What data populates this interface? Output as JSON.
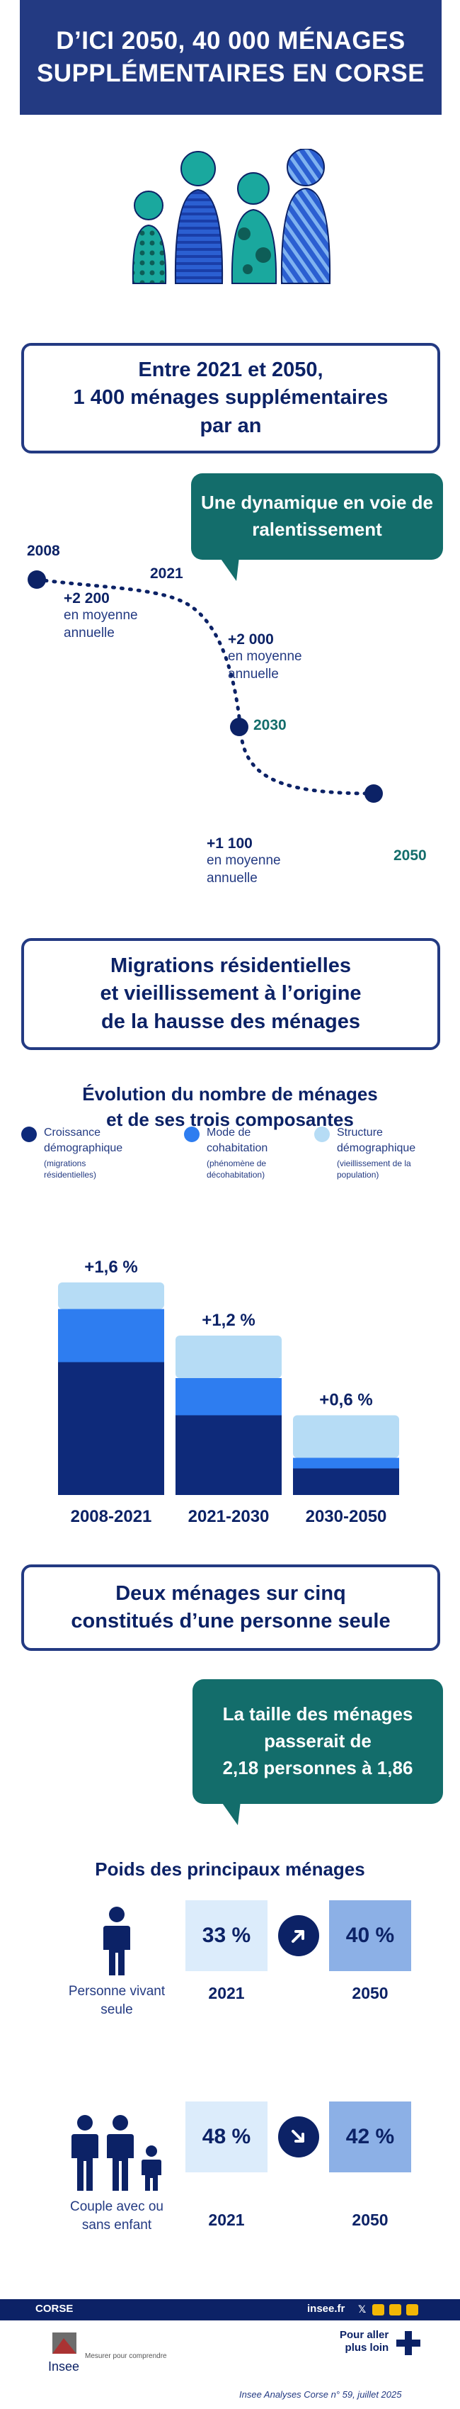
{
  "header": {
    "title_line1": "D’ICI 2050, 40 000 MÉNAGES",
    "title_line2": "SUPPLÉMENTAIRES EN CORSE"
  },
  "colors": {
    "navy": "#0c2266",
    "header": "#233a82",
    "teal": "#136d6b",
    "bar_dark": "#0e2a7a",
    "bar_mid": "#2e7df0",
    "bar_light": "#b6dcf5",
    "cell_light": "#dcecfb",
    "cell_mid": "#8cb0e6",
    "figure_teal": "#1aa89e",
    "figure_blue": "#2b5fd1"
  },
  "section1": {
    "box_line1": "Entre 2021 et 2050,",
    "box_line2": "1 400 ménages supplémentaires",
    "box_line3": "par an",
    "bubble_line1": "Une dynamique en voie de",
    "bubble_line2": "ralentissement",
    "y2008": "2008",
    "y2021": "2021",
    "y2030": "2030",
    "y2050": "2050",
    "v1": "+2 200",
    "v1_sub1": "en moyenne",
    "v1_sub2": "annuelle",
    "v2": "+2 000",
    "v2_sub1": "en moyenne",
    "v2_sub2": "annuelle",
    "v3": "+1 100",
    "v3_sub1": "en moyenne",
    "v3_sub2": "annuelle"
  },
  "section2": {
    "box_line1": "Migrations résidentielles",
    "box_line2": "et vieillissement à l’origine",
    "box_line3": "de la hausse des ménages",
    "chart_title_line1": "Évolution du nombre de ménages",
    "chart_title_line2": "et de ses trois composantes",
    "legend": [
      {
        "label1": "Croissance",
        "label2": "démographique",
        "sub1": "(migrations",
        "sub2": "résidentielles)",
        "color": "#0e2a7a"
      },
      {
        "label1": "Mode de",
        "label2": "cohabitation",
        "sub1": "(phénomène de",
        "sub2": "décohabitation)",
        "color": "#2e7df0"
      },
      {
        "label1": "Structure",
        "label2": "démographique",
        "sub1": "(vieillissement de la",
        "sub2": "population)",
        "color": "#b6dcf5"
      }
    ]
  },
  "chart_data": {
    "type": "bar",
    "stacked": true,
    "categories": [
      "2008-2021",
      "2021-2030",
      "2030-2050"
    ],
    "totals_labels": [
      "+1,6 %",
      "+1,2 %",
      "+0,6 %"
    ],
    "totals": [
      1.6,
      1.2,
      0.6
    ],
    "series": [
      {
        "name": "Croissance démographique",
        "values": [
          1.0,
          0.6,
          0.2
        ]
      },
      {
        "name": "Mode de cohabitation",
        "values": [
          0.4,
          0.28,
          0.08
        ]
      },
      {
        "name": "Structure démographique",
        "values": [
          0.2,
          0.32,
          0.32
        ]
      }
    ],
    "ylim": [
      0,
      1.6
    ],
    "grid": false,
    "legend_position": "top"
  },
  "section3": {
    "box_line1": "Deux ménages sur cinq",
    "box_line2": "constitués d’une personne seule",
    "bubble_line1": "La taille des ménages",
    "bubble_line2": "passerait de",
    "bubble_line3": "2,18 personnes à 1,86",
    "table_title": "Poids des principaux ménages",
    "rows": [
      {
        "label1": "Personne vivant",
        "label2": "seule",
        "v2021": "33 %",
        "v2050": "40 %",
        "trend": "up"
      },
      {
        "label1": "Couple avec ou",
        "label2": "sans enfant",
        "v2021": "48 %",
        "v2050": "42 %",
        "trend": "down"
      }
    ],
    "year_a": "2021",
    "year_b": "2050"
  },
  "footer": {
    "region": "CORSE",
    "site": "insee.fr",
    "logo_text": "Insee",
    "tagline": "Mesurer pour comprendre",
    "more_line1": "Pour aller",
    "more_line2": "plus loin",
    "publication": "Insee Analyses Corse n° 59, juillet 2025"
  }
}
